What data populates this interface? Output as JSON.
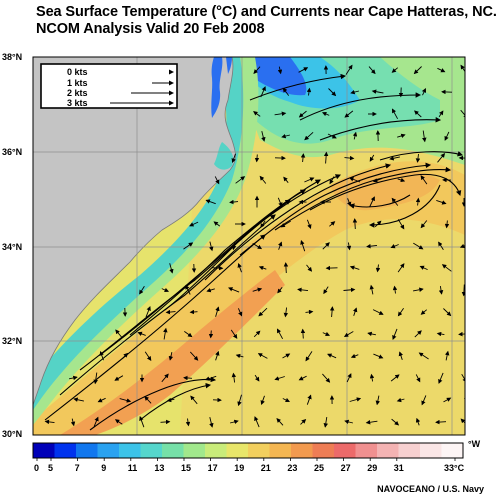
{
  "title": {
    "line1": "Sea Surface Temperature (°C) and Currents near Cape Hatteras, NC.",
    "line2": "NCOM Analysis Valid 20 Feb 2008"
  },
  "latitude_labels": [
    "38°N",
    "36°N",
    "34°N",
    "32°N",
    "30°N"
  ],
  "longitude_unit_label": "°W",
  "legend": {
    "entries": [
      {
        "label": "0 kts",
        "speed": 0
      },
      {
        "label": "1 kts",
        "speed": 1
      },
      {
        "label": "2 kts",
        "speed": 2
      },
      {
        "label": "3 kts",
        "speed": 3
      }
    ]
  },
  "colorbar": {
    "tick_labels": [
      "0",
      "5",
      "7",
      "9",
      "11",
      "13",
      "15",
      "17",
      "19",
      "21",
      "23",
      "25",
      "27",
      "29",
      "31",
      "33°C"
    ],
    "colors": [
      "#0000b8",
      "#0033ee",
      "#1177ee",
      "#2aa2f0",
      "#3cc3e8",
      "#55d6cc",
      "#76e0a8",
      "#a1e88c",
      "#c9ec7a",
      "#e8e66a",
      "#f2cf5e",
      "#f4b652",
      "#f29a4f",
      "#ee7d55",
      "#ec6a6a",
      "#f09090",
      "#f4b3b3",
      "#f7d0d0",
      "#fae6e6",
      "#fdf5f5"
    ]
  },
  "credit": "NAVOCEANO / U.S. Navy",
  "map_colors": {
    "land": "#c4c4c4",
    "gulf_stream": "#f2cd5e",
    "warm_core": "#f2a052",
    "shelf": "#76dfb0",
    "shelf_inner": "#3cc3e8",
    "cold_north": "#2a6ff0",
    "slope": "#a8e890",
    "offshore": "#e8e36a",
    "grid": "#8f8f8f"
  }
}
